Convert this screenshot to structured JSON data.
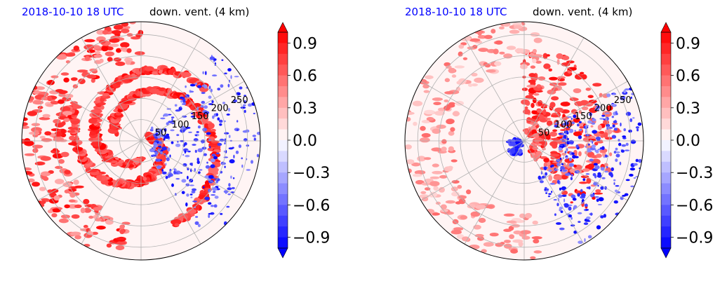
{
  "chart_data": [
    {
      "type": "heatmap",
      "projection": "polar",
      "title_left": "2018-10-10 18 UTC",
      "title_right": "down. vent. (4 km)",
      "radial_ticks": [
        "50",
        "100",
        "150",
        "200",
        "250"
      ],
      "radial_tick_values": [
        50,
        100,
        150,
        200,
        250
      ],
      "r_max": 280,
      "colorbar": {
        "cmap": "bwr",
        "range": [
          -1.0,
          1.0
        ],
        "extend": "both",
        "ticks": [
          0.9,
          0.6,
          0.3,
          0.0,
          -0.3,
          -0.6,
          -0.9
        ],
        "tick_labels": [
          "0.9",
          "0.6",
          "0.3",
          "0.0",
          "−0.3",
          "−0.6",
          "−0.9"
        ]
      },
      "pattern": "spiral"
    },
    {
      "type": "heatmap",
      "projection": "polar",
      "title_left": "2018-10-10 18 UTC",
      "title_right": "down. vent. (4 km)",
      "radial_ticks": [
        "50",
        "100",
        "150",
        "200",
        "250"
      ],
      "radial_tick_values": [
        50,
        100,
        150,
        200,
        250
      ],
      "r_max": 280,
      "colorbar": {
        "cmap": "bwr",
        "range": [
          -1.0,
          1.0
        ],
        "extend": "both",
        "ticks": [
          0.9,
          0.6,
          0.3,
          0.0,
          -0.3,
          -0.6,
          -0.9
        ],
        "tick_labels": [
          "0.9",
          "0.6",
          "0.3",
          "0.0",
          "−0.3",
          "−0.6",
          "−0.9"
        ]
      },
      "pattern": "scattered"
    }
  ],
  "colors": {
    "title_date": "#0000ff",
    "title_var": "#000000",
    "positive": "#ee0000",
    "negative": "#0000ee",
    "grid": "#b0b0b0"
  }
}
